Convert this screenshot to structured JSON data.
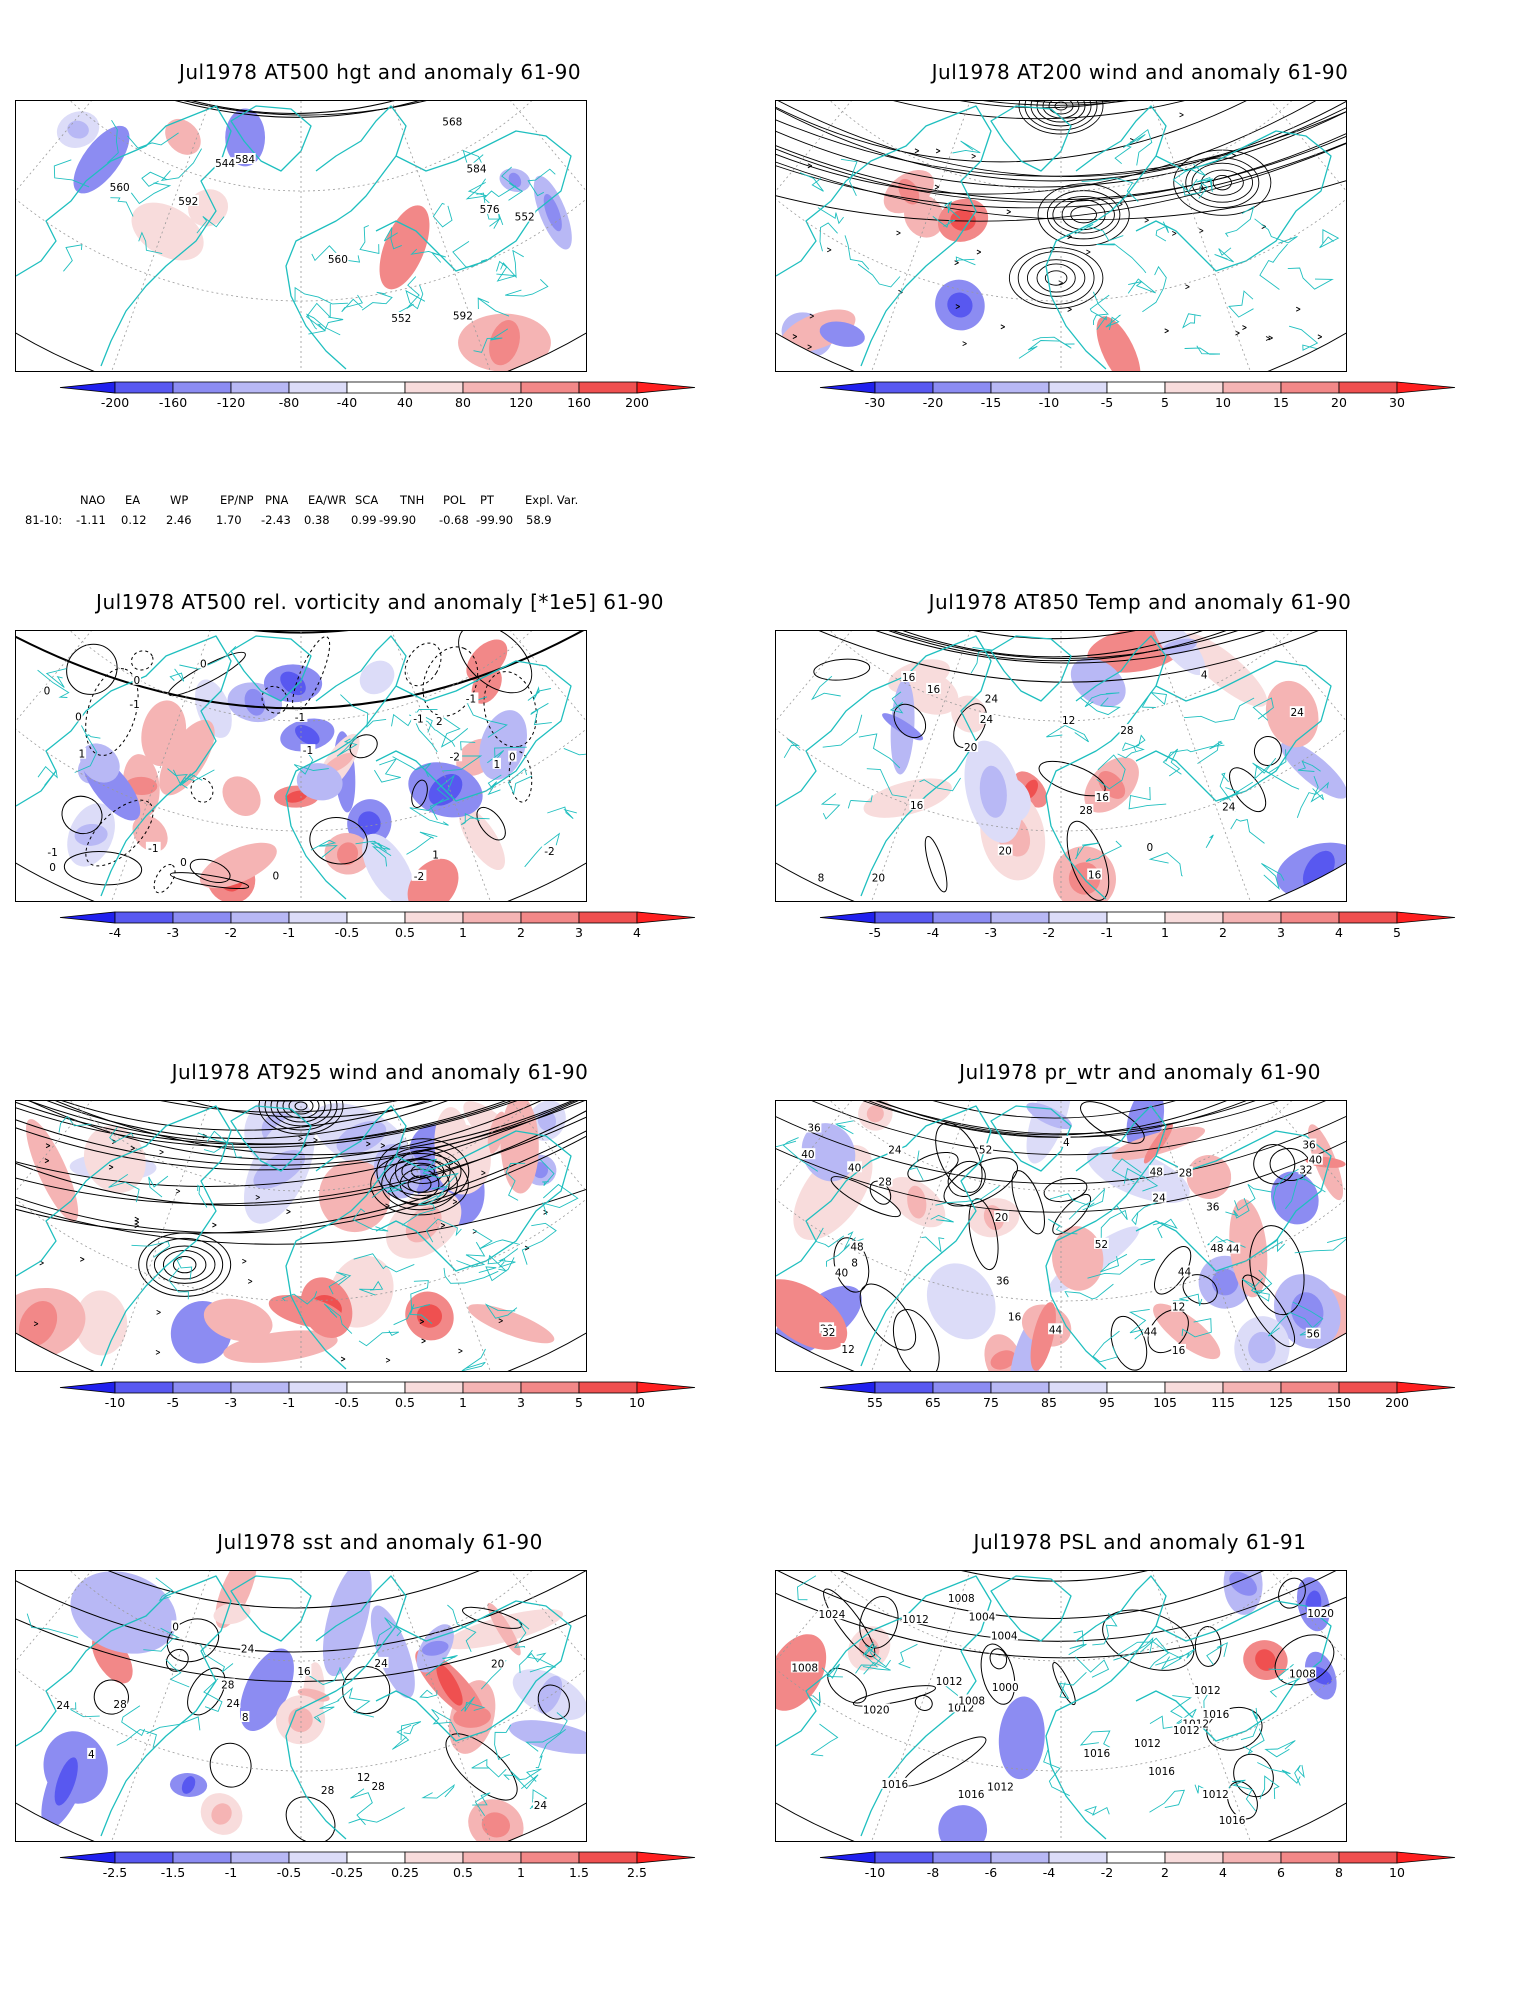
{
  "panels": [
    {
      "id": "p1",
      "title": "Jul1978 AT500 hgt and anomaly 61-90",
      "colorbar": [
        "-200",
        "-160",
        "-120",
        "-80",
        "-40",
        "40",
        "80",
        "120",
        "160",
        "200"
      ],
      "contour_labels": [
        "592",
        "544",
        "552",
        "552",
        "560",
        "560",
        "568",
        "576",
        "584",
        "592",
        "584"
      ],
      "style": "height"
    },
    {
      "id": "p2",
      "title": "Jul1978 AT200 wind and anomaly 61-90",
      "colorbar": [
        "-30",
        "-20",
        "-15",
        "-10",
        "-5",
        "5",
        "10",
        "15",
        "20",
        "30"
      ],
      "contour_labels": [],
      "style": "stream"
    },
    {
      "id": "p3",
      "title": "Jul1978 AT500 rel. vorticity and anomaly [*1e5] 61-90",
      "colorbar": [
        "-4",
        "-3",
        "-2",
        "-1",
        "-0.5",
        "0.5",
        "1",
        "2",
        "3",
        "4"
      ],
      "contour_labels": [
        "0",
        "0",
        "0",
        "-1",
        "-1",
        "-2",
        "1",
        "1",
        "-1",
        "0",
        "-2",
        "2",
        "-1",
        "0",
        "0",
        "-1",
        "-1",
        "1",
        "-1",
        "0",
        "-2",
        "0"
      ],
      "style": "vort"
    },
    {
      "id": "p4",
      "title": "Jul1978 AT850 Temp and anomaly 61-90",
      "colorbar": [
        "-5",
        "-4",
        "-3",
        "-2",
        "-1",
        "1",
        "2",
        "3",
        "4",
        "5"
      ],
      "contour_labels": [
        "20",
        "24",
        "0",
        "4",
        "8",
        "12",
        "16",
        "16",
        "20",
        "24",
        "28",
        "16",
        "24",
        "28",
        "20",
        "16",
        "24",
        "16"
      ],
      "style": "temp"
    },
    {
      "id": "p5",
      "title": "Jul1978 AT925 wind and anomaly 61-90",
      "colorbar": [
        "-10",
        "-5",
        "-3",
        "-1",
        "-0.5",
        "0.5",
        "1",
        "3",
        "5",
        "10"
      ],
      "contour_labels": [],
      "style": "stream2"
    },
    {
      "id": "p6",
      "title": "Jul1978 pr_wtr and anomaly 61-90",
      "colorbar": [
        "55",
        "65",
        "75",
        "85",
        "95",
        "105",
        "115",
        "125",
        "150",
        "200"
      ],
      "contour_labels": [
        "52",
        "36",
        "40",
        "44",
        "48",
        "12",
        "4",
        "8",
        "16",
        "20",
        "24",
        "28",
        "32",
        "36",
        "40",
        "44",
        "48",
        "56",
        "52",
        "48",
        "40",
        "36",
        "44",
        "32",
        "28",
        "24",
        "20",
        "16",
        "12",
        "44",
        "36",
        "40"
      ],
      "style": "prwtr"
    },
    {
      "id": "p7",
      "title": "Jul1978 sst and anomaly 61-90",
      "colorbar": [
        "-2.5",
        "-1.5",
        "-1",
        "-0.5",
        "-0.25",
        "0.25",
        "0.5",
        "1",
        "1.5",
        "2.5"
      ],
      "contour_labels": [
        "24",
        "28",
        "28",
        "12",
        "16",
        "20",
        "24",
        "28",
        "8",
        "4",
        "0",
        "24",
        "24",
        "28",
        "24"
      ],
      "style": "sst"
    },
    {
      "id": "p8",
      "title": "Jul1978 PSL and anomaly 61-91",
      "colorbar": [
        "-10",
        "-8",
        "-6",
        "-4",
        "-2",
        "2",
        "4",
        "6",
        "8",
        "10"
      ],
      "contour_labels": [
        "1012",
        "1016",
        "1012",
        "1016",
        "1008",
        "1012",
        "1016",
        "1020",
        "1024",
        "1020",
        "1016",
        "1012",
        "1012",
        "1016",
        "1008",
        "1012",
        "1000",
        "1004",
        "1008",
        "1012",
        "1008",
        "1012",
        "1016",
        "1004",
        "1012"
      ],
      "style": "psl"
    }
  ],
  "indices": {
    "row_label": "81-10:",
    "names": [
      "NAO",
      "EA",
      "WP",
      "EP/NP",
      "PNA",
      "EA/WR",
      "SCA",
      "TNH",
      "POL",
      "PT",
      "Expl. Var."
    ],
    "values": [
      "-1.11",
      "0.12",
      "2.46",
      "1.70",
      "-2.43",
      "0.38",
      "0.99",
      "-99.90",
      "-0.68",
      "-99.90",
      "58.9"
    ]
  },
  "colors": {
    "coast": "#1fbfbf",
    "neg": [
      "#2020ee",
      "#5858f0",
      "#8c8cf2",
      "#b8b8f5",
      "#dcdcf8"
    ],
    "pos": [
      "#f8dcdc",
      "#f5b4b4",
      "#f28888",
      "#ef5050",
      "#ff2020"
    ]
  }
}
